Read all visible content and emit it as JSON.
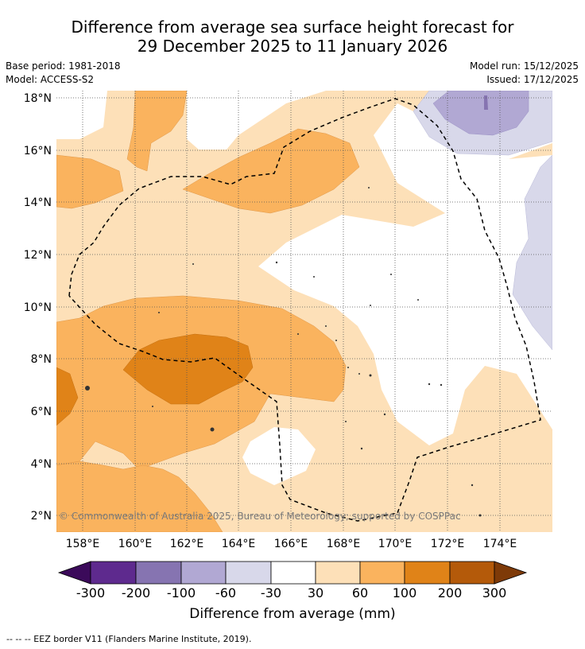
{
  "title": {
    "line1": "Difference from average sea surface height forecast for",
    "line2": "29 December 2025 to 11 January 2026"
  },
  "meta": {
    "base_period": "Base period: 1981-2018",
    "model": "Model: ACCESS-S2",
    "model_run": "Model run: 15/12/2025",
    "issued": "Issued: 17/12/2025"
  },
  "map": {
    "lon_ticks": [
      "158°E",
      "160°E",
      "162°E",
      "164°E",
      "166°E",
      "168°E",
      "170°E",
      "172°E",
      "174°E"
    ],
    "lat_ticks": [
      "18°N",
      "16°N",
      "14°N",
      "12°N",
      "10°N",
      "8°N",
      "6°N",
      "4°N",
      "2°N"
    ],
    "copyright": "© Commonwealth of Australia 2025, Bureau of Meteorology; supported by COSPPac"
  },
  "colorbar": {
    "tick_labels": [
      "-300",
      "-200",
      "-100",
      "-60",
      "-30",
      "30",
      "60",
      "100",
      "200",
      "300"
    ],
    "label": "Difference from average (mm)",
    "colors": {
      "below": "#3b0a5a",
      "n300_200": "#5e2a8e",
      "n200_100": "#8674b1",
      "n100_60": "#b1a8d3",
      "n60_30": "#d8d8ea",
      "n30_30": "#ffffff",
      "p30_60": "#fde0b8",
      "p60_100": "#fab35e",
      "p100_200": "#e08318",
      "p200_300": "#b45a0a",
      "above": "#7e3a08"
    }
  },
  "footer": "--  --  -- EEZ border V11 (Flanders Marine Institute, 2019)."
}
